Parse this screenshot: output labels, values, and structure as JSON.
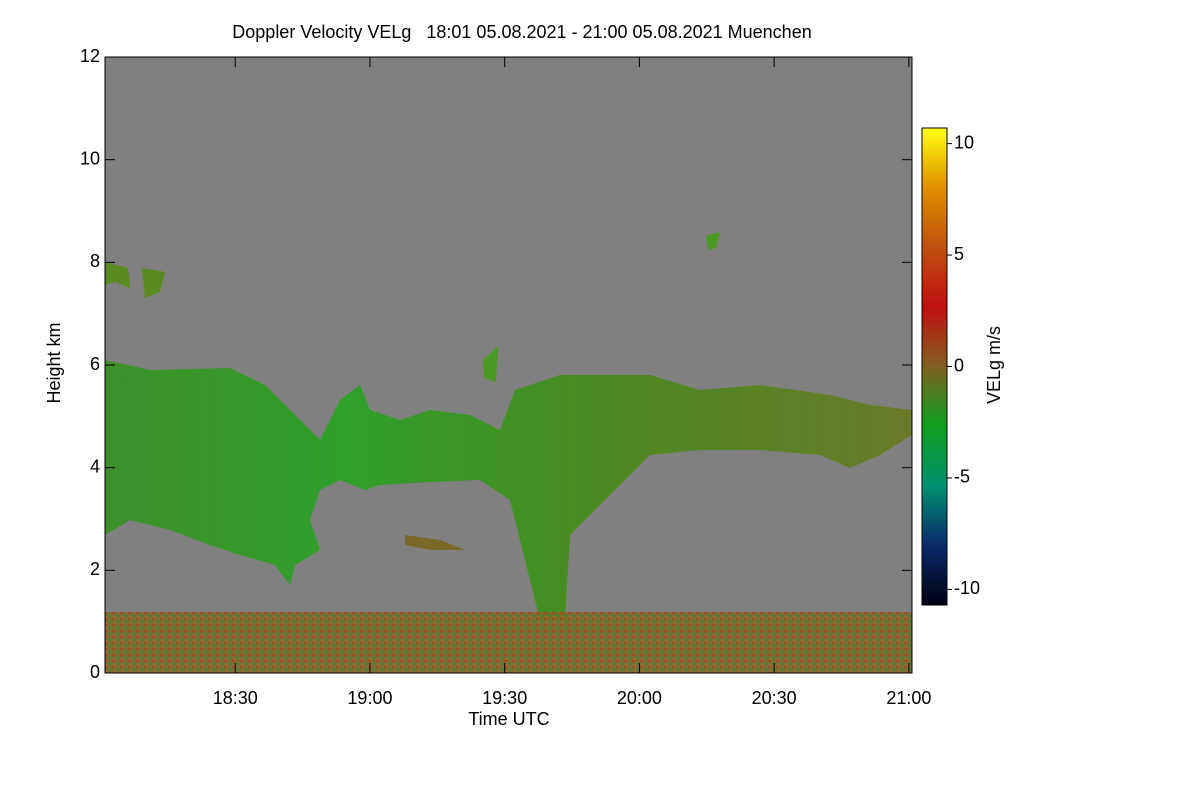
{
  "chart_data": {
    "type": "heatmap",
    "title": "Doppler Velocity VELg   18:01 05.08.2021 - 21:00 05.08.2021 Muenchen",
    "x_label": "Time UTC",
    "y_label": "Height km",
    "xlim": [
      1,
      180.7
    ],
    "xticks": [
      {
        "value": 30,
        "label": "18:30"
      },
      {
        "value": 60,
        "label": "19:00"
      },
      {
        "value": 90,
        "label": "19:30"
      },
      {
        "value": 120,
        "label": "20:00"
      },
      {
        "value": 150,
        "label": "20:30"
      },
      {
        "value": 180,
        "label": "21:00"
      }
    ],
    "ylim": [
      0,
      12
    ],
    "yticks": [
      0,
      2,
      4,
      6,
      8,
      10,
      12
    ],
    "background": "#808080",
    "colorbar": {
      "label": "VELg m/s",
      "lim": [
        -10.7,
        10.7
      ],
      "ticks": [
        10,
        5,
        0,
        -5,
        -10
      ],
      "colors": [
        "#000010",
        "#0a2a6a",
        "#009070",
        "#10a020",
        "#806020",
        "#c01010",
        "#c05010",
        "#e09000",
        "#ffff10"
      ]
    }
  }
}
